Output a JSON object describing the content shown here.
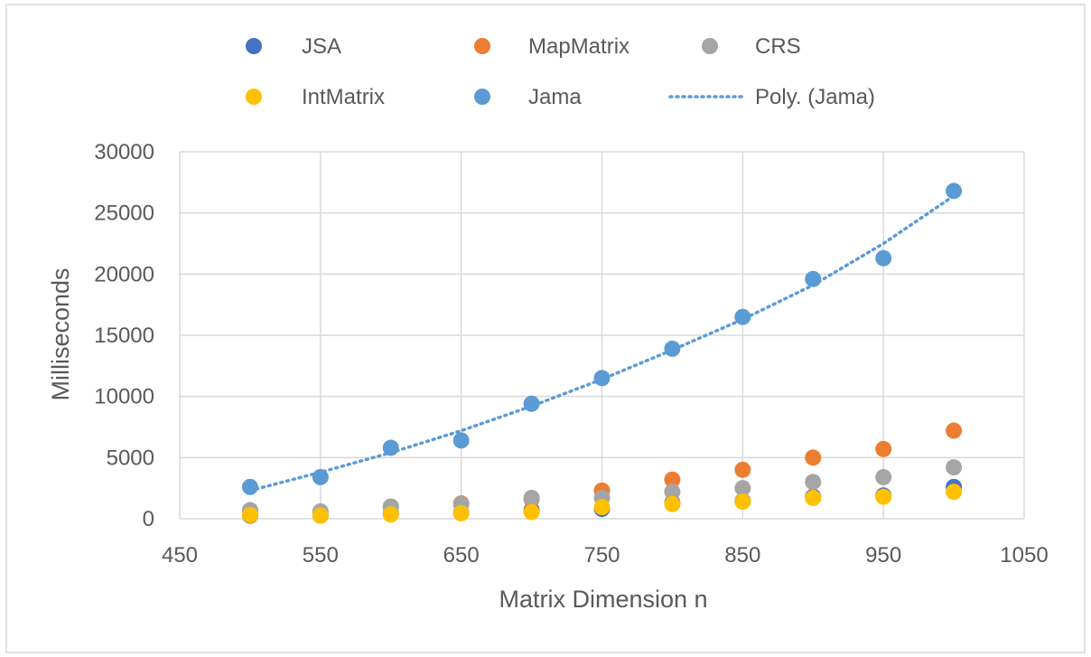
{
  "chart_data": {
    "type": "scatter",
    "title": "",
    "xlabel": "Matrix Dimension n",
    "ylabel": "Milliseconds",
    "xlim": [
      450,
      1050
    ],
    "ylim": [
      0,
      30000
    ],
    "xticks": [
      450,
      550,
      650,
      750,
      850,
      950,
      1050
    ],
    "yticks": [
      0,
      5000,
      10000,
      15000,
      20000,
      25000,
      30000
    ],
    "xtick_labels": [
      "450",
      "550",
      "650",
      "750",
      "850",
      "950",
      "1050"
    ],
    "ytick_labels": [
      "0",
      "5000",
      "10000",
      "15000",
      "20000",
      "25000",
      "30000"
    ],
    "grid": true,
    "legend_position": "top",
    "x": [
      500,
      550,
      600,
      650,
      700,
      750,
      800,
      850,
      900,
      950,
      1000
    ],
    "series": [
      {
        "name": "JSA",
        "color": "#4472C4",
        "values": [
          250,
          250,
          400,
          500,
          700,
          800,
          1300,
          1450,
          1800,
          1900,
          2600
        ]
      },
      {
        "name": "MapMatrix",
        "color": "#ED7D31",
        "values": [
          600,
          550,
          950,
          1250,
          1600,
          2300,
          3200,
          4000,
          5000,
          5700,
          7200
        ]
      },
      {
        "name": "CRS",
        "color": "#A5A5A5",
        "values": [
          700,
          600,
          1000,
          1200,
          1700,
          1700,
          2200,
          2500,
          3000,
          3400,
          4200
        ]
      },
      {
        "name": "IntMatrix",
        "color": "#FFC000",
        "values": [
          300,
          250,
          350,
          450,
          550,
          950,
          1200,
          1400,
          1700,
          1800,
          2200
        ]
      },
      {
        "name": "Jama",
        "color": "#5B9BD5",
        "values": [
          2600,
          3400,
          5800,
          6400,
          9400,
          11500,
          13900,
          16500,
          19600,
          21300,
          26800
        ]
      }
    ],
    "trendline": {
      "name": "Poly. (Jama)",
      "color": "#5B9BD5",
      "style": "dotted",
      "x": [
        500,
        550,
        600,
        650,
        700,
        750,
        800,
        850,
        900,
        950,
        1000
      ],
      "values": [
        2300,
        3800,
        5400,
        7200,
        9200,
        11400,
        13800,
        16300,
        19100,
        22500,
        26400
      ]
    }
  }
}
